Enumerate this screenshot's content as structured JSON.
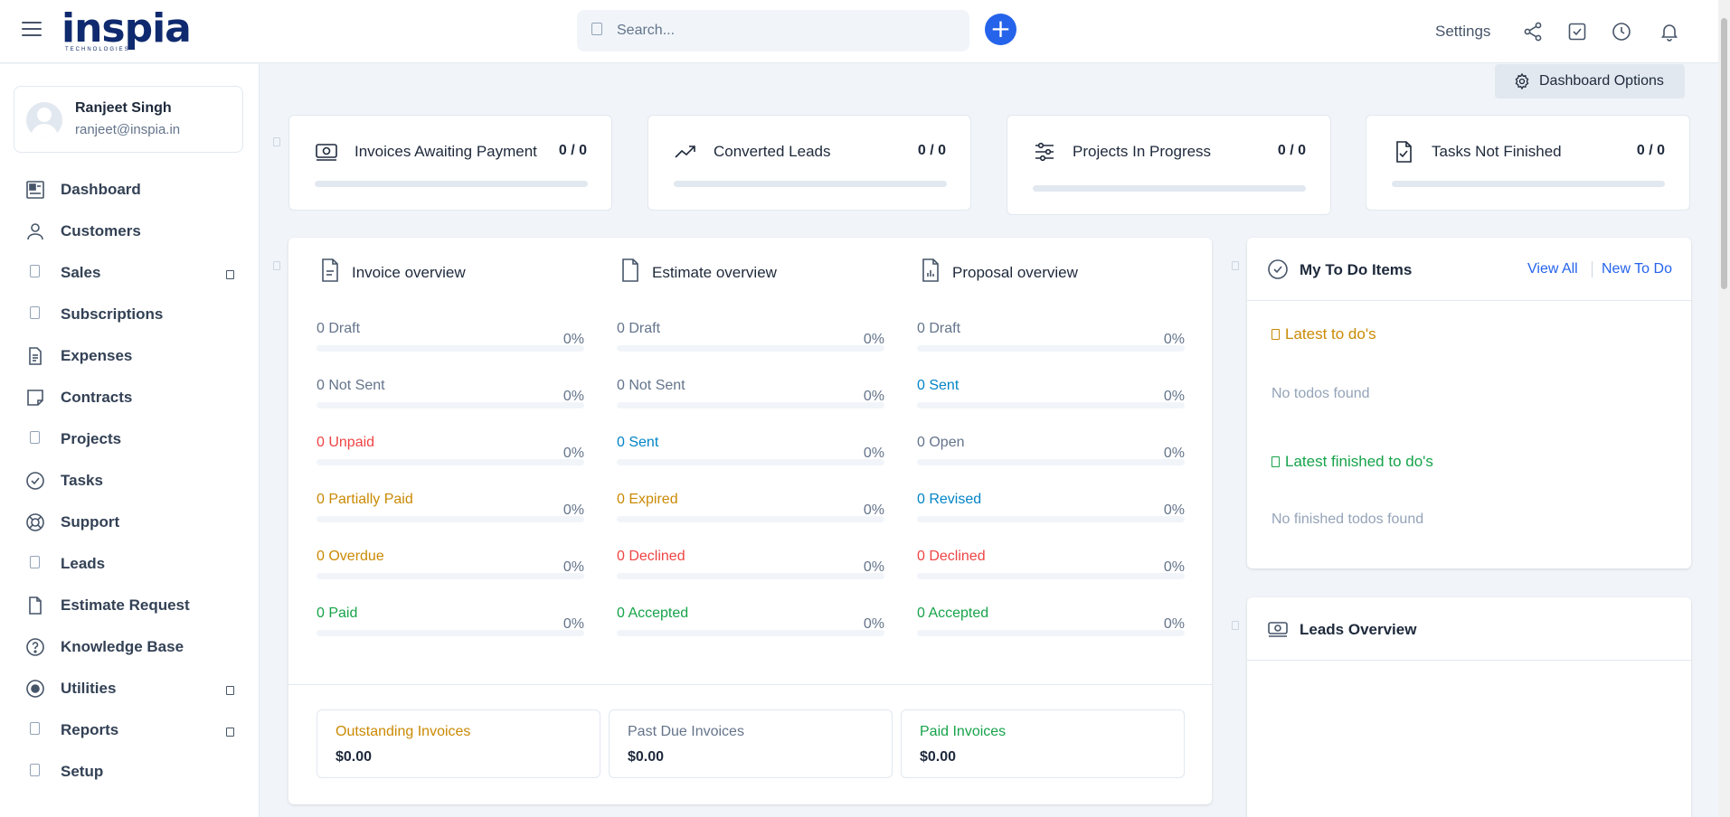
{
  "header": {
    "logo_text": "inspia",
    "logo_sub": "TECHNOLOGIES",
    "search_placeholder": "Search...",
    "add_label": "+",
    "settings_label": "Settings"
  },
  "user": {
    "name": "Ranjeet Singh",
    "email": "ranjeet@inspia.in"
  },
  "sidebar": {
    "items": [
      {
        "label": "Dashboard",
        "icon": "dashboard-icon"
      },
      {
        "label": "Customers",
        "icon": "user-icon"
      },
      {
        "label": "Sales",
        "icon": "placeholder-icon",
        "submenu": true
      },
      {
        "label": "Subscriptions",
        "icon": "placeholder-icon"
      },
      {
        "label": "Expenses",
        "icon": "document-icon"
      },
      {
        "label": "Contracts",
        "icon": "note-icon"
      },
      {
        "label": "Projects",
        "icon": "placeholder-icon"
      },
      {
        "label": "Tasks",
        "icon": "check-circle-icon"
      },
      {
        "label": "Support",
        "icon": "lifebuoy-icon"
      },
      {
        "label": "Leads",
        "icon": "placeholder-icon"
      },
      {
        "label": "Estimate Request",
        "icon": "file-icon"
      },
      {
        "label": "Knowledge Base",
        "icon": "question-circle-icon"
      },
      {
        "label": "Utilities",
        "icon": "radio-circle-icon",
        "submenu": true
      },
      {
        "label": "Reports",
        "icon": "placeholder-icon",
        "submenu": true
      },
      {
        "label": "Setup",
        "icon": "placeholder-icon"
      }
    ]
  },
  "dashboard_options_label": "Dashboard Options",
  "stats": [
    {
      "label": "Invoices Awaiting Payment",
      "value": "0 / 0",
      "progress": 0
    },
    {
      "label": "Converted Leads",
      "value": "0 / 0",
      "progress": 0
    },
    {
      "label": "Projects In Progress",
      "value": "0 / 0",
      "progress": 0
    },
    {
      "label": "Tasks Not Finished",
      "value": "0 / 0",
      "progress": 0
    }
  ],
  "overview": {
    "columns": [
      {
        "title": "Invoice overview",
        "rows": [
          {
            "label": "0 Draft",
            "pct": "0%",
            "color": "#64748b"
          },
          {
            "label": "0 Not Sent",
            "pct": "0%",
            "color": "#64748b"
          },
          {
            "label": "0 Unpaid",
            "pct": "0%",
            "color": "#ef4444"
          },
          {
            "label": "0 Partially Paid",
            "pct": "0%",
            "color": "#ca8a04"
          },
          {
            "label": "0 Overdue",
            "pct": "0%",
            "color": "#ca8a04"
          },
          {
            "label": "0 Paid",
            "pct": "0%",
            "color": "#16a34a"
          }
        ]
      },
      {
        "title": "Estimate overview",
        "rows": [
          {
            "label": "0 Draft",
            "pct": "0%",
            "color": "#64748b"
          },
          {
            "label": "0 Not Sent",
            "pct": "0%",
            "color": "#64748b"
          },
          {
            "label": "0 Sent",
            "pct": "0%",
            "color": "#0284c7"
          },
          {
            "label": "0 Expired",
            "pct": "0%",
            "color": "#ca8a04"
          },
          {
            "label": "0 Declined",
            "pct": "0%",
            "color": "#ef4444"
          },
          {
            "label": "0 Accepted",
            "pct": "0%",
            "color": "#16a34a"
          }
        ]
      },
      {
        "title": "Proposal overview",
        "rows": [
          {
            "label": "0 Draft",
            "pct": "0%",
            "color": "#64748b"
          },
          {
            "label": "0 Sent",
            "pct": "0%",
            "color": "#0284c7"
          },
          {
            "label": "0 Open",
            "pct": "0%",
            "color": "#64748b"
          },
          {
            "label": "0 Revised",
            "pct": "0%",
            "color": "#0284c7"
          },
          {
            "label": "0 Declined",
            "pct": "0%",
            "color": "#ef4444"
          },
          {
            "label": "0 Accepted",
            "pct": "0%",
            "color": "#16a34a"
          }
        ]
      }
    ],
    "summary": [
      {
        "title": "Outstanding Invoices",
        "value": "$0.00",
        "color": "#ca8a04"
      },
      {
        "title": "Past Due Invoices",
        "value": "$0.00",
        "color": "#64748b"
      },
      {
        "title": "Paid Invoices",
        "value": "$0.00",
        "color": "#16a34a"
      }
    ]
  },
  "todo": {
    "title": "My To Do Items",
    "view_all": "View All",
    "new_todo": "New To Do",
    "latest_title": "Latest to do's",
    "latest_empty": "No todos found",
    "finished_title": "Latest finished to do's",
    "finished_empty": "No finished todos found",
    "latest_color": "#ca8a04",
    "finished_color": "#16a34a"
  },
  "leads": {
    "title": "Leads Overview"
  },
  "colors": {
    "accent": "#2563eb",
    "brand": "#0f2a6e"
  }
}
